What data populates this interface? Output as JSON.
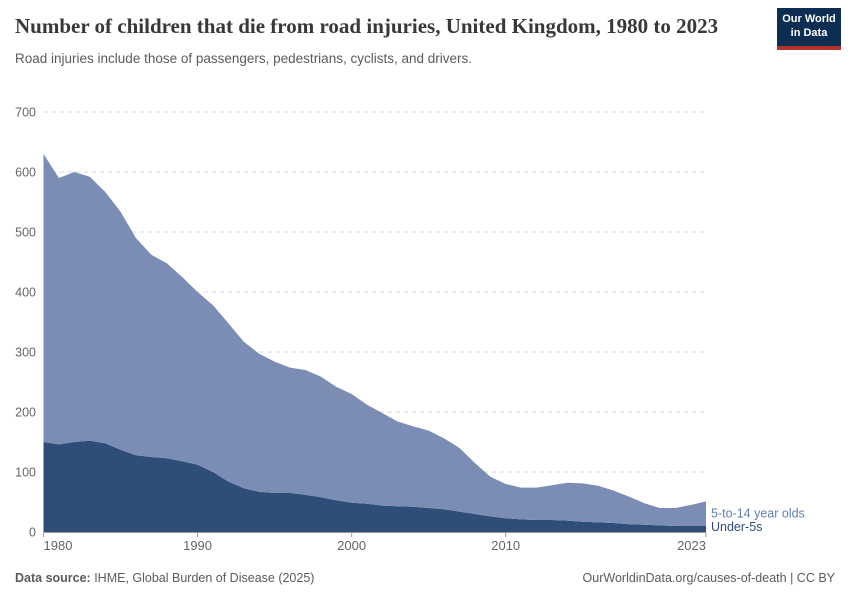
{
  "header": {
    "title": "Number of children that die from road injuries, United Kingdom, 1980 to 2023",
    "subtitle": "Road injuries include those of passengers, pedestrians, cyclists, and drivers.",
    "logo": {
      "line1": "Our World",
      "line2": "in Data",
      "bg": "#0d2d52",
      "accent": "#b5332b"
    }
  },
  "chart_data": {
    "type": "area",
    "stacked": true,
    "title": "Number of children that die from road injuries, United Kingdom, 1980 to 2023",
    "xlabel": "",
    "ylabel": "",
    "ylim": [
      0,
      700
    ],
    "yticks": [
      0,
      100,
      200,
      300,
      400,
      500,
      600,
      700
    ],
    "xticks": [
      1980,
      1990,
      2000,
      2010,
      2023
    ],
    "grid": "horizontal-dashed",
    "legend_position": "right-of-area-end",
    "grid_color": "#d9d9d9",
    "axis_color": "#999999",
    "tick_label_color": "#666666",
    "x": [
      1980,
      1981,
      1982,
      1983,
      1984,
      1985,
      1986,
      1987,
      1988,
      1989,
      1990,
      1991,
      1992,
      1993,
      1994,
      1995,
      1996,
      1997,
      1998,
      1999,
      2000,
      2001,
      2002,
      2003,
      2004,
      2005,
      2006,
      2007,
      2008,
      2009,
      2010,
      2011,
      2012,
      2013,
      2014,
      2015,
      2016,
      2017,
      2018,
      2019,
      2020,
      2021,
      2022,
      2023
    ],
    "series": [
      {
        "name": "Under-5s",
        "color": "#2e4e77",
        "label_color": "#2e4e77",
        "values": [
          150,
          146,
          150,
          152,
          148,
          137,
          128,
          125,
          123,
          118,
          112,
          100,
          84,
          73,
          67,
          65,
          65,
          62,
          58,
          53,
          49,
          47,
          44,
          43,
          42,
          40,
          38,
          34,
          30,
          26,
          23,
          21,
          20,
          20,
          19,
          17,
          16,
          15,
          13,
          12,
          11,
          10,
          10,
          10
        ]
      },
      {
        "name": "5-to-14 year olds",
        "color": "#7b8db5",
        "label_color": "#627ea9",
        "values": [
          480,
          444,
          450,
          440,
          419,
          397,
          362,
          337,
          325,
          307,
          288,
          278,
          264,
          244,
          230,
          219,
          209,
          208,
          201,
          189,
          181,
          165,
          154,
          141,
          134,
          129,
          118,
          106,
          85,
          66,
          57,
          53,
          54,
          58,
          63,
          64,
          61,
          54,
          46,
          36,
          29,
          30,
          35,
          41
        ]
      }
    ]
  },
  "footer": {
    "source_label": "Data source:",
    "source": " IHME, Global Burden of Disease (2025)",
    "link": "OurWorldinData.org/causes-of-death",
    "separator": " | ",
    "license": "CC BY"
  }
}
